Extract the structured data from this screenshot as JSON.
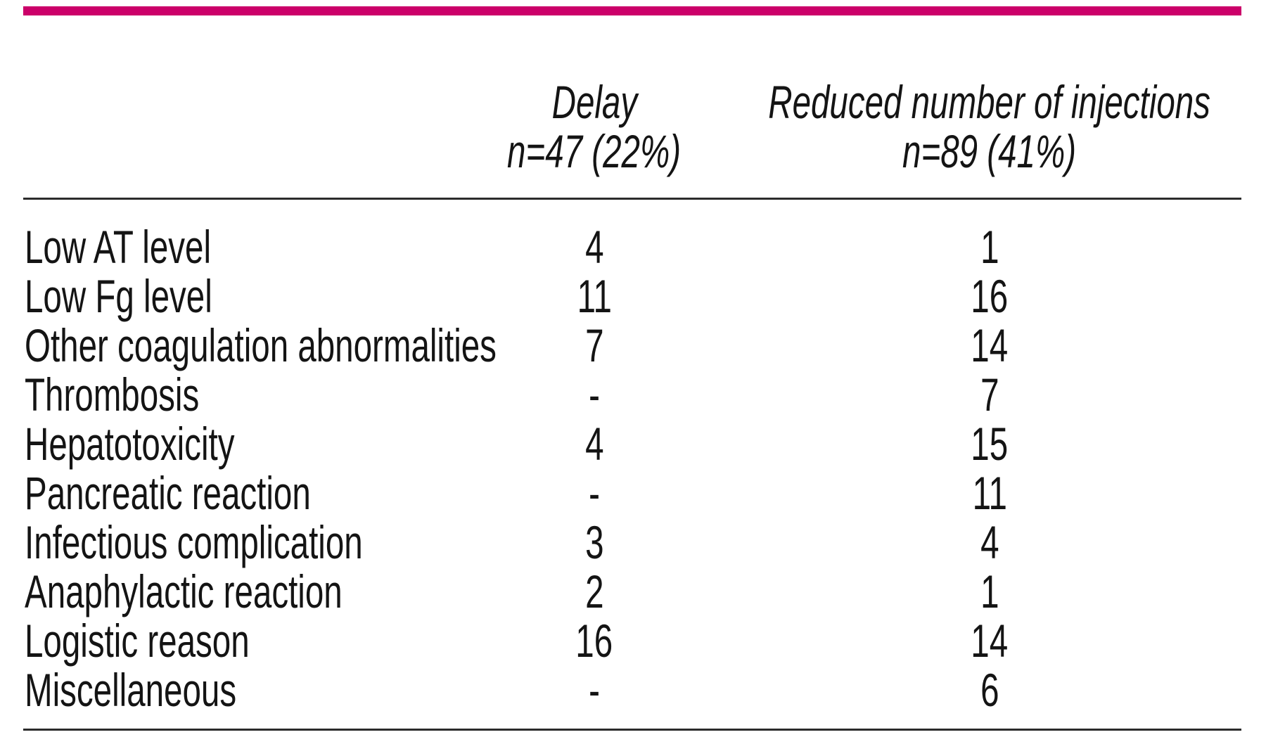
{
  "accent_color": "#cb0069",
  "header": {
    "delay": {
      "line1": "Delay",
      "line2": "n=47 (22%)"
    },
    "reduced": {
      "line1": "Reduced number of injections",
      "line2": "n=89 (41%)"
    }
  },
  "rows": [
    {
      "label": "Low AT level",
      "delay": "4",
      "reduced": "1"
    },
    {
      "label": "Low Fg level",
      "delay": "11",
      "reduced": "16"
    },
    {
      "label": "Other coagulation abnormalities",
      "delay": "7",
      "reduced": "14"
    },
    {
      "label": "Thrombosis",
      "delay": "-",
      "reduced": "7"
    },
    {
      "label": "Hepatotoxicity",
      "delay": "4",
      "reduced": "15"
    },
    {
      "label": "Pancreatic reaction",
      "delay": "-",
      "reduced": "11"
    },
    {
      "label": "Infectious complication",
      "delay": "3",
      "reduced": "4"
    },
    {
      "label": "Anaphylactic reaction",
      "delay": "2",
      "reduced": "1"
    },
    {
      "label": "Logistic reason",
      "delay": "16",
      "reduced": "14"
    },
    {
      "label": "Miscellaneous",
      "delay": "-",
      "reduced": "6"
    }
  ]
}
